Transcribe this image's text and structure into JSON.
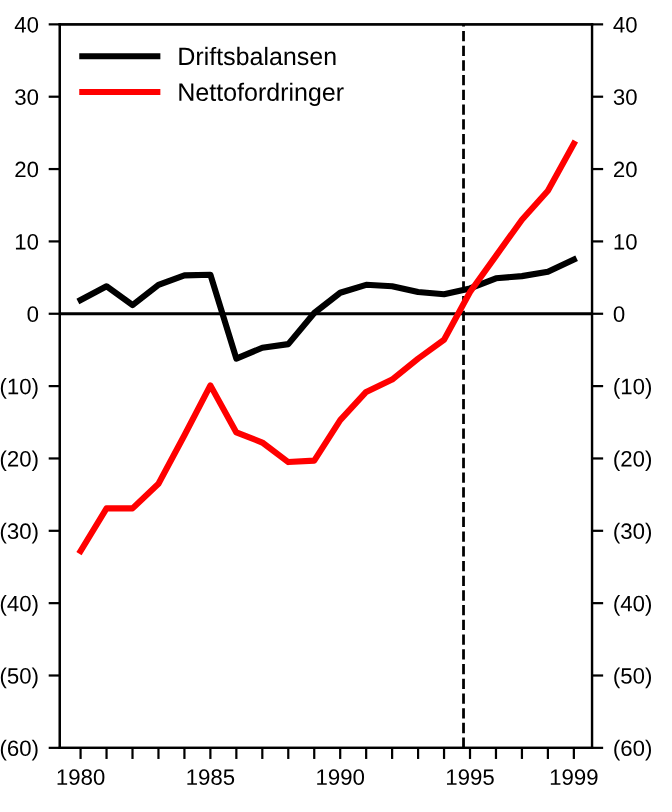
{
  "chart_data": {
    "type": "line",
    "x": [
      1980,
      1981,
      1982,
      1983,
      1984,
      1985,
      1986,
      1987,
      1988,
      1989,
      1990,
      1991,
      1992,
      1993,
      1994,
      1995,
      1996,
      1997,
      1998,
      1999
    ],
    "series": [
      {
        "name": "Driftsbalansen",
        "color": "#000000",
        "values": [
          1.9,
          3.8,
          1.2,
          4.0,
          5.3,
          5.4,
          -6.2,
          -4.7,
          -4.2,
          0.1,
          2.9,
          4.0,
          3.8,
          3.0,
          2.7,
          3.5,
          4.9,
          5.2,
          5.8,
          7.5
        ]
      },
      {
        "name": "Nettofordringer",
        "color": "#ff0000",
        "values": [
          -32.8,
          -26.9,
          -26.9,
          -23.5,
          -16.8,
          -9.9,
          -16.4,
          -17.8,
          -20.5,
          -20.3,
          -14.7,
          -10.8,
          -9.1,
          -6.2,
          -3.6,
          3.0,
          8.0,
          13.0,
          17.0,
          23.5
        ]
      }
    ],
    "xlim": [
      1979.2,
      1999.7
    ],
    "xticks": [
      1980,
      {
        "value": 1981,
        "label": null
      },
      {
        "value": 1982,
        "label": null
      },
      {
        "value": 1983,
        "label": null
      },
      {
        "value": 1984,
        "label": null
      },
      1985,
      {
        "value": 1986,
        "label": null
      },
      {
        "value": 1987,
        "label": null
      },
      {
        "value": 1988,
        "label": null
      },
      {
        "value": 1989,
        "label": null
      },
      1990,
      {
        "value": 1991,
        "label": null
      },
      {
        "value": 1992,
        "label": null
      },
      {
        "value": 1993,
        "label": null
      },
      {
        "value": 1994,
        "label": null
      },
      1995,
      {
        "value": 1996,
        "label": null
      },
      {
        "value": 1997,
        "label": null
      },
      {
        "value": 1998,
        "label": null
      },
      1999
    ],
    "ylim": [
      -60,
      40
    ],
    "yticks": [
      {
        "value": -60,
        "label": "(60)"
      },
      {
        "value": -50,
        "label": "(50)"
      },
      {
        "value": -40,
        "label": "(40)"
      },
      {
        "value": -30,
        "label": "(30)"
      },
      {
        "value": -20,
        "label": "(20)"
      },
      {
        "value": -10,
        "label": "(10)"
      },
      0,
      10,
      20,
      30,
      40
    ],
    "y2lim": [
      -60,
      40
    ],
    "y2ticks": [
      {
        "value": -60,
        "label": "(60)"
      },
      {
        "value": -50,
        "label": "(50)"
      },
      {
        "value": -40,
        "label": "(40)"
      },
      {
        "value": -30,
        "label": "(30)"
      },
      {
        "value": -20,
        "label": "(20)"
      },
      {
        "value": -10,
        "label": "(10)"
      },
      0,
      10,
      20,
      30,
      40
    ],
    "ref_lines": [
      {
        "axis": "y",
        "value": 0,
        "color": "#000000",
        "line_style": "solid"
      },
      {
        "axis": "x",
        "value": 1994.75,
        "color": "#000000",
        "line_style": "dashed"
      }
    ],
    "legend": "top left",
    "grid": false,
    "line_style": "solid"
  }
}
